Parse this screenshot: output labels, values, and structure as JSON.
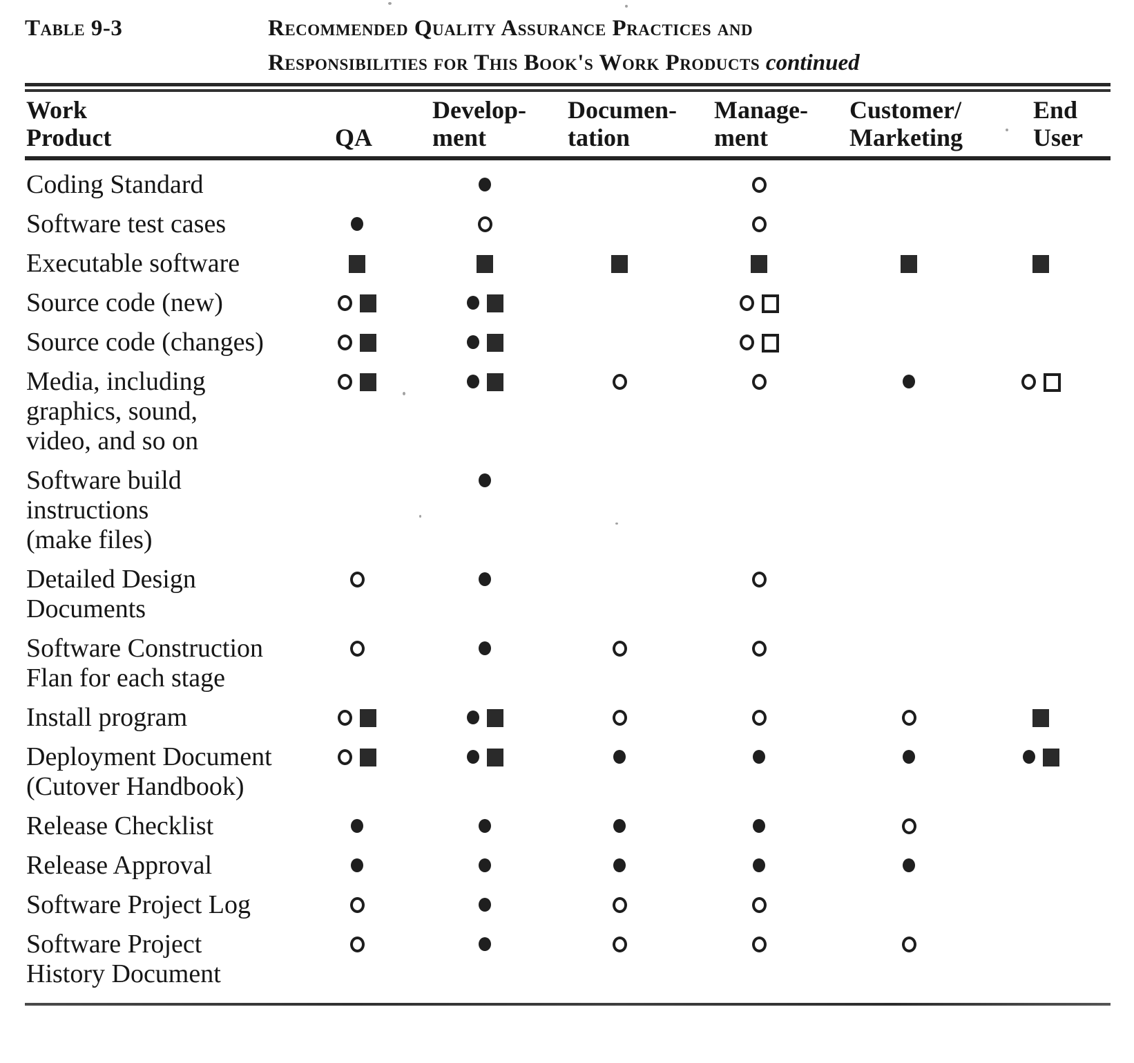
{
  "page": {
    "table_label": "Table 9-3",
    "title_line1": "Recommended Quality Assurance Practices and",
    "title_line2": "Responsibilities for This Book's Work Products",
    "title_continued": "continued"
  },
  "colors": {
    "ink": "#161616",
    "paper": "#ffffff"
  },
  "symbol_legend": {
    "filled-circle": "●",
    "open-circle": "○",
    "filled-square": "■",
    "open-square": "□"
  },
  "table": {
    "columns": [
      {
        "id": "work_product",
        "lines": [
          "Work",
          "Product"
        ]
      },
      {
        "id": "qa",
        "lines": [
          "QA"
        ]
      },
      {
        "id": "development",
        "lines": [
          "Develop-",
          "ment"
        ]
      },
      {
        "id": "documentation",
        "lines": [
          "Documen-",
          "tation"
        ]
      },
      {
        "id": "management",
        "lines": [
          "Manage-",
          "ment"
        ]
      },
      {
        "id": "customer_marketing",
        "lines": [
          "Customer/",
          "Marketing"
        ]
      },
      {
        "id": "end_user",
        "lines": [
          "End",
          "User"
        ]
      }
    ],
    "rows": [
      {
        "product_lines": [
          "Coding Standard"
        ],
        "qa": [],
        "development": [
          "filled-circle"
        ],
        "documentation": [],
        "management": [
          "open-circle"
        ],
        "customer_marketing": [],
        "end_user": []
      },
      {
        "product_lines": [
          "Software test cases"
        ],
        "qa": [
          "filled-circle"
        ],
        "development": [
          "open-circle"
        ],
        "documentation": [],
        "management": [
          "open-circle"
        ],
        "customer_marketing": [],
        "end_user": []
      },
      {
        "product_lines": [
          "Executable software"
        ],
        "qa": [
          "filled-square"
        ],
        "development": [
          "filled-square"
        ],
        "documentation": [
          "filled-square"
        ],
        "management": [
          "filled-square"
        ],
        "customer_marketing": [
          "filled-square"
        ],
        "end_user": [
          "filled-square"
        ]
      },
      {
        "product_lines": [
          "Source code (new)"
        ],
        "qa": [
          "open-circle",
          "filled-square"
        ],
        "development": [
          "filled-circle",
          "filled-square"
        ],
        "documentation": [],
        "management": [
          "open-circle",
          "open-square"
        ],
        "customer_marketing": [],
        "end_user": []
      },
      {
        "product_lines": [
          "Source code (changes)"
        ],
        "qa": [
          "open-circle",
          "filled-square"
        ],
        "development": [
          "filled-circle",
          "filled-square"
        ],
        "documentation": [],
        "management": [
          "open-circle",
          "open-square"
        ],
        "customer_marketing": [],
        "end_user": []
      },
      {
        "product_lines": [
          "Media, including",
          "graphics, sound,",
          "video, and so on"
        ],
        "qa": [
          "open-circle",
          "filled-square"
        ],
        "development": [
          "filled-circle",
          "filled-square"
        ],
        "documentation": [
          "open-circle"
        ],
        "management": [
          "open-circle"
        ],
        "customer_marketing": [
          "filled-circle"
        ],
        "end_user": [
          "open-circle",
          "open-square"
        ]
      },
      {
        "product_lines": [
          "Software build",
          "instructions",
          "(make files)"
        ],
        "qa": [],
        "development": [
          "filled-circle"
        ],
        "documentation": [],
        "management": [],
        "customer_marketing": [],
        "end_user": []
      },
      {
        "product_lines": [
          "Detailed Design",
          "Documents"
        ],
        "qa": [
          "open-circle"
        ],
        "development": [
          "filled-circle"
        ],
        "documentation": [],
        "management": [
          "open-circle"
        ],
        "customer_marketing": [],
        "end_user": []
      },
      {
        "product_lines": [
          "Software Construction",
          "Flan for each stage"
        ],
        "qa": [
          "open-circle"
        ],
        "development": [
          "filled-circle"
        ],
        "documentation": [
          "open-circle"
        ],
        "management": [
          "open-circle"
        ],
        "customer_marketing": [],
        "end_user": []
      },
      {
        "product_lines": [
          "Install program"
        ],
        "qa": [
          "open-circle",
          "filled-square"
        ],
        "development": [
          "filled-circle",
          "filled-square"
        ],
        "documentation": [
          "open-circle"
        ],
        "management": [
          "open-circle"
        ],
        "customer_marketing": [
          "open-circle"
        ],
        "end_user": [
          "filled-square"
        ]
      },
      {
        "product_lines": [
          "Deployment Document",
          "(Cutover Handbook)"
        ],
        "qa": [
          "open-circle",
          "filled-square"
        ],
        "development": [
          "filled-circle",
          "filled-square"
        ],
        "documentation": [
          "filled-circle"
        ],
        "management": [
          "filled-circle"
        ],
        "customer_marketing": [
          "filled-circle"
        ],
        "end_user": [
          "filled-circle",
          "filled-square"
        ]
      },
      {
        "product_lines": [
          "Release Checklist"
        ],
        "qa": [
          "filled-circle"
        ],
        "development": [
          "filled-circle"
        ],
        "documentation": [
          "filled-circle"
        ],
        "management": [
          "filled-circle"
        ],
        "customer_marketing": [
          "open-circle"
        ],
        "end_user": []
      },
      {
        "product_lines": [
          "Release Approval"
        ],
        "qa": [
          "filled-circle"
        ],
        "development": [
          "filled-circle"
        ],
        "documentation": [
          "filled-circle"
        ],
        "management": [
          "filled-circle"
        ],
        "customer_marketing": [
          "filled-circle"
        ],
        "end_user": []
      },
      {
        "product_lines": [
          "Software Project Log"
        ],
        "qa": [
          "open-circle"
        ],
        "development": [
          "filled-circle"
        ],
        "documentation": [
          "open-circle"
        ],
        "management": [
          "open-circle"
        ],
        "customer_marketing": [],
        "end_user": []
      },
      {
        "product_lines": [
          "Software Project",
          "History Document"
        ],
        "qa": [
          "open-circle"
        ],
        "development": [
          "filled-circle"
        ],
        "documentation": [
          "open-circle"
        ],
        "management": [
          "open-circle"
        ],
        "customer_marketing": [
          "open-circle"
        ],
        "end_user": []
      }
    ]
  }
}
